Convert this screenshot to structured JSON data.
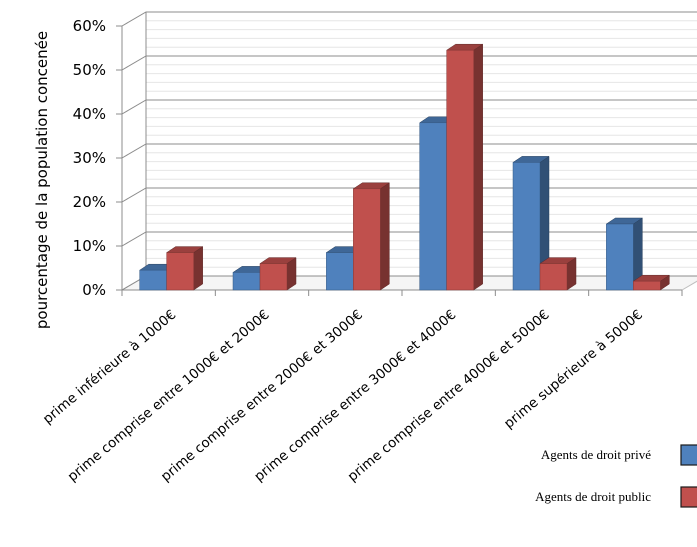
{
  "chart_data": {
    "type": "bar",
    "title": "",
    "xlabel": "",
    "ylabel": "pourcentage de la population concenée",
    "ylim": [
      0,
      60
    ],
    "yticks": [
      "0%",
      "10%",
      "20%",
      "30%",
      "40%",
      "50%",
      "60%"
    ],
    "ytick_values": [
      0,
      10,
      20,
      30,
      40,
      50,
      60
    ],
    "grid": true,
    "three_d": true,
    "legend_placement": "bottom-right",
    "categories": [
      "prime inférieure à 1000€",
      "prime comprise entre 1000€ et 2000€",
      "prime comprise entre 2000€ et 3000€",
      "prime comprise entre 3000€ et 4000€",
      "prime comprise entre 4000€ et 5000€",
      "prime supérieure à 5000€"
    ],
    "series": [
      {
        "name": "Agents de droit privé",
        "color": "#4F81BD",
        "values": [
          4.5,
          4,
          8.5,
          38,
          29,
          15
        ]
      },
      {
        "name": "Agents de droit public",
        "color": "#C0504D",
        "values": [
          8.5,
          6,
          23,
          54.5,
          6,
          2
        ]
      }
    ]
  }
}
